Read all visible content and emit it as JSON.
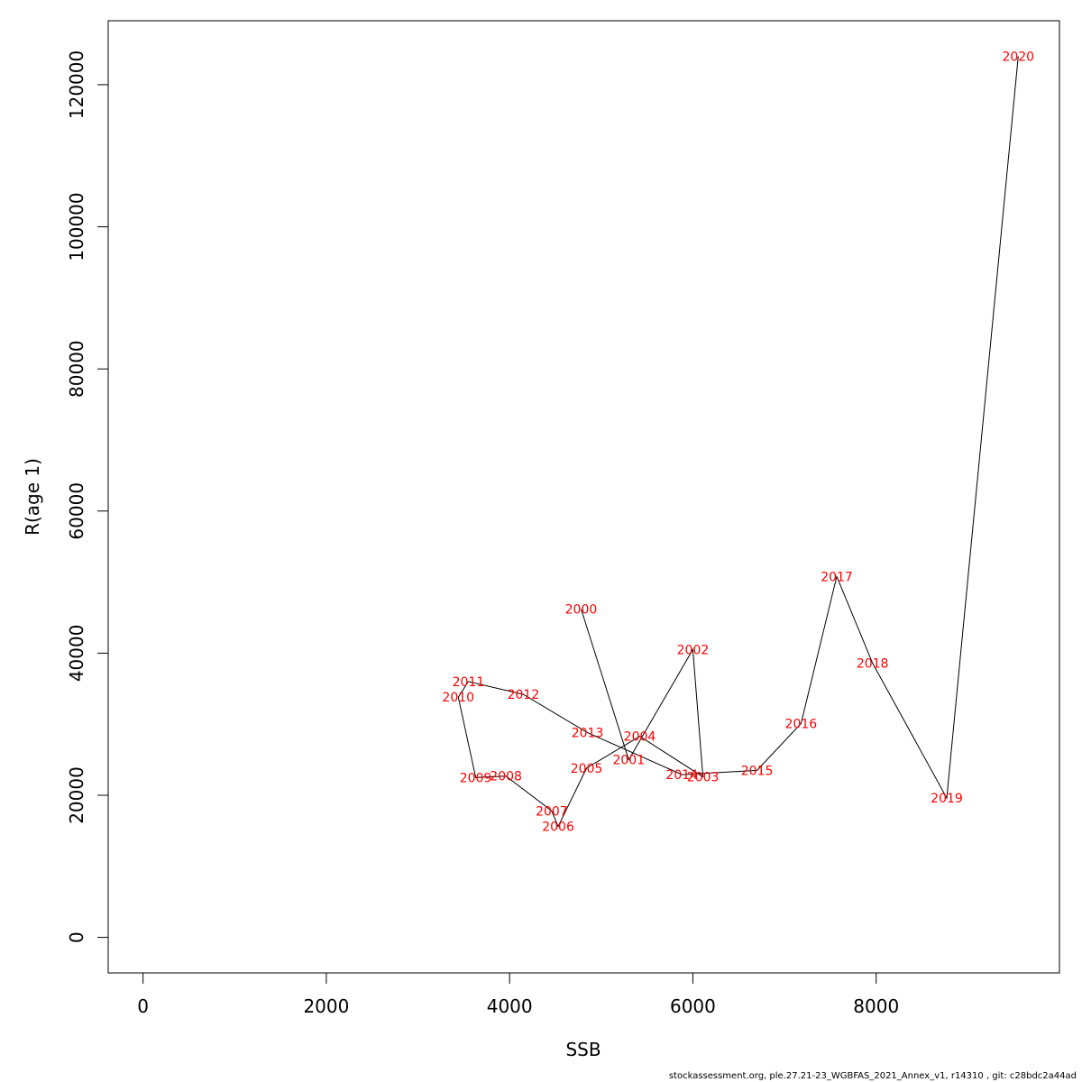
{
  "chart_data": {
    "type": "line",
    "title": "",
    "xlabel": "SSB",
    "ylabel": "R(age 1)",
    "xlim": [
      -380,
      10000
    ],
    "ylim": [
      -5000,
      129000
    ],
    "xticks": [
      0,
      2000,
      4000,
      6000,
      8000
    ],
    "yticks": [
      0,
      20000,
      40000,
      60000,
      80000,
      100000,
      120000
    ],
    "grid": false,
    "line_color": "#000000",
    "label_color": "#ff0000",
    "points": [
      {
        "label": "2000",
        "x": 4780,
        "y": 46200
      },
      {
        "label": "2001",
        "x": 5300,
        "y": 25000
      },
      {
        "label": "2002",
        "x": 6000,
        "y": 40500
      },
      {
        "label": "2003",
        "x": 6110,
        "y": 22600
      },
      {
        "label": "2004",
        "x": 5420,
        "y": 28300
      },
      {
        "label": "2005",
        "x": 4840,
        "y": 23800
      },
      {
        "label": "2006",
        "x": 4530,
        "y": 15600
      },
      {
        "label": "2007",
        "x": 4460,
        "y": 17800
      },
      {
        "label": "2008",
        "x": 3960,
        "y": 22700
      },
      {
        "label": "2009",
        "x": 3630,
        "y": 22500
      },
      {
        "label": "2010",
        "x": 3440,
        "y": 33800
      },
      {
        "label": "2011",
        "x": 3550,
        "y": 36000
      },
      {
        "label": "2012",
        "x": 4150,
        "y": 34200
      },
      {
        "label": "2013",
        "x": 4850,
        "y": 28800
      },
      {
        "label": "2014",
        "x": 5880,
        "y": 22900
      },
      {
        "label": "2015",
        "x": 6700,
        "y": 23500
      },
      {
        "label": "2016",
        "x": 7180,
        "y": 30100
      },
      {
        "label": "2017",
        "x": 7570,
        "y": 50800
      },
      {
        "label": "2018",
        "x": 7960,
        "y": 38600
      },
      {
        "label": "2019",
        "x": 8770,
        "y": 19600
      },
      {
        "label": "2020",
        "x": 9550,
        "y": 124000
      }
    ]
  },
  "footer": {
    "text": "stockassessment.org, ple.27.21-23_WGBFAS_2021_Annex_v1, r14310 , git: c28bdc2a44ad"
  }
}
